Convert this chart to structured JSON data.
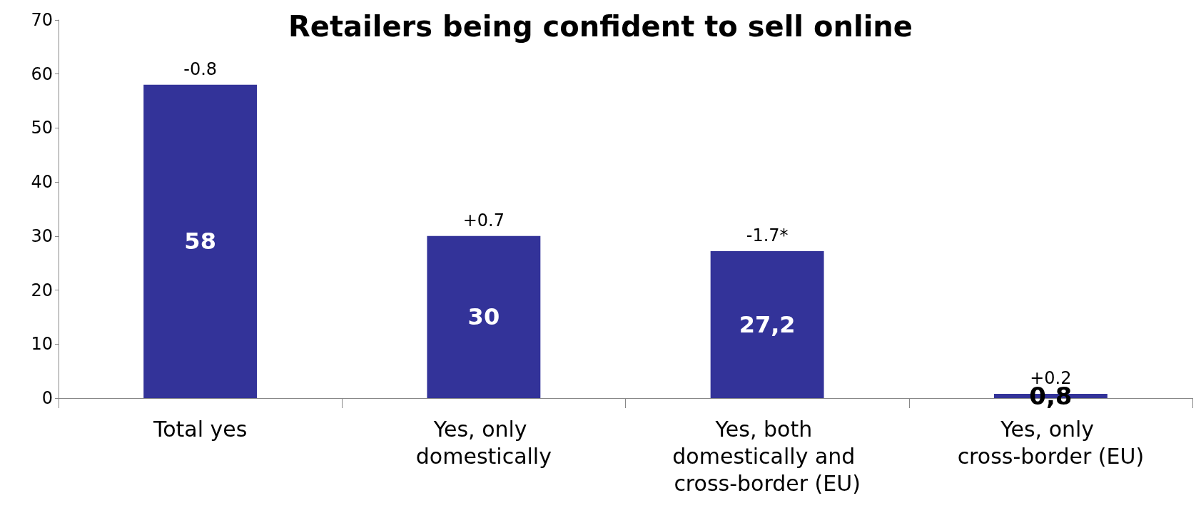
{
  "chart_data": {
    "type": "bar",
    "title": "Retailers being confident to sell online",
    "categories": [
      "Total yes",
      "Yes, only domestically",
      "Yes, both domestically and cross-border (EU)",
      "Yes, only cross-border (EU)"
    ],
    "values": [
      58,
      30,
      27.2,
      0.8
    ],
    "value_labels": [
      "58",
      "30",
      "27,2",
      "0,8"
    ],
    "color": "#333399",
    "ylim": [
      0,
      70
    ],
    "yticks": [
      0,
      10,
      20,
      30,
      40,
      50,
      60,
      70
    ],
    "grid": false,
    "annotations": [
      {
        "text": "-0.8",
        "x": "Total yes",
        "y": 58
      },
      {
        "text": "+0.7",
        "x": "Yes, only domestically",
        "y": 30
      },
      {
        "text": "-1.7*",
        "x": "Yes, both domestically and cross-border (EU)",
        "y": 27.2
      },
      {
        "text": "+0.2",
        "x": "Yes, only cross-border (EU)",
        "y": 0.8
      }
    ]
  }
}
